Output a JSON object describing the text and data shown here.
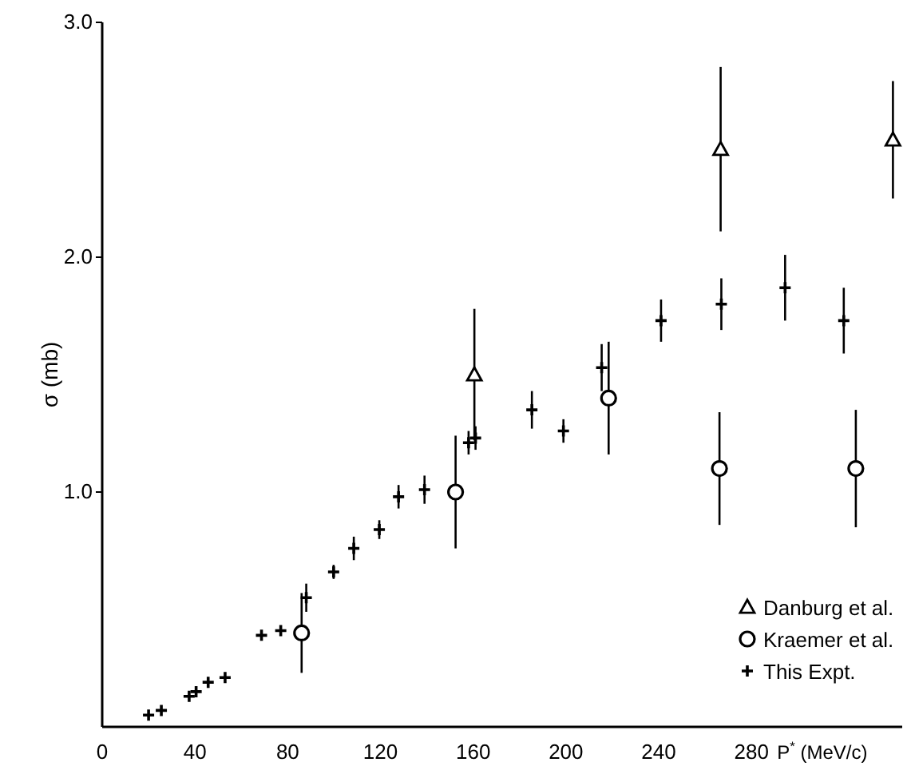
{
  "chart_data": {
    "type": "scatter",
    "xlabel": "P$^{*}$ (MeV/c)",
    "ylabel": "σ (mb)",
    "xlim": [
      0,
      345
    ],
    "xticks": [
      0,
      40,
      80,
      120,
      160,
      200,
      240,
      280
    ],
    "ylim": [
      0,
      3.0
    ],
    "yticks": [
      {
        "value": 1,
        "label": "1.0"
      },
      {
        "value": 2,
        "label": "2.0"
      },
      {
        "value": 3,
        "label": "3.0"
      }
    ],
    "grid": false,
    "legend": "bottom right",
    "series": [
      {
        "name": "Danburg et al.",
        "color": "#000000",
        "marker": "triangle",
        "x": [
          160.5,
          266.7,
          341
        ],
        "values": [
          1.5,
          2.46,
          2.5
        ],
        "errors": [
          0.28,
          0.35,
          0.25
        ]
      },
      {
        "name": "Kraemer et al.",
        "color": "#000000",
        "marker": "circle",
        "x": [
          86,
          152.4,
          218.4,
          266.2,
          325
        ],
        "values": [
          0.4,
          1.0,
          1.4,
          1.1,
          1.1
        ],
        "errors": [
          0.17,
          0.24,
          0.24,
          0.24,
          0.25
        ]
      },
      {
        "name": "This Expt.",
        "color": "#000000",
        "marker": "cross",
        "x": [
          20,
          25.5,
          37.5,
          40.5,
          45.7,
          53,
          68.7,
          77,
          88,
          99.8,
          108.5,
          119.5,
          127.8,
          139,
          158,
          161,
          185.3,
          198.9,
          215.4,
          241,
          267,
          294.5,
          319.8
        ],
        "values": [
          0.05,
          0.07,
          0.13,
          0.15,
          0.19,
          0.21,
          0.39,
          0.41,
          0.55,
          0.66,
          0.76,
          0.84,
          0.98,
          1.01,
          1.21,
          1.23,
          1.35,
          1.26,
          1.53,
          1.73,
          1.8,
          1.87,
          1.73
        ],
        "errors": [
          null,
          null,
          null,
          null,
          null,
          null,
          null,
          null,
          0.06,
          0.03,
          0.05,
          0.04,
          0.05,
          0.06,
          0.05,
          0.05,
          0.08,
          0.05,
          0.1,
          0.09,
          0.11,
          0.14,
          0.14
        ]
      }
    ]
  }
}
